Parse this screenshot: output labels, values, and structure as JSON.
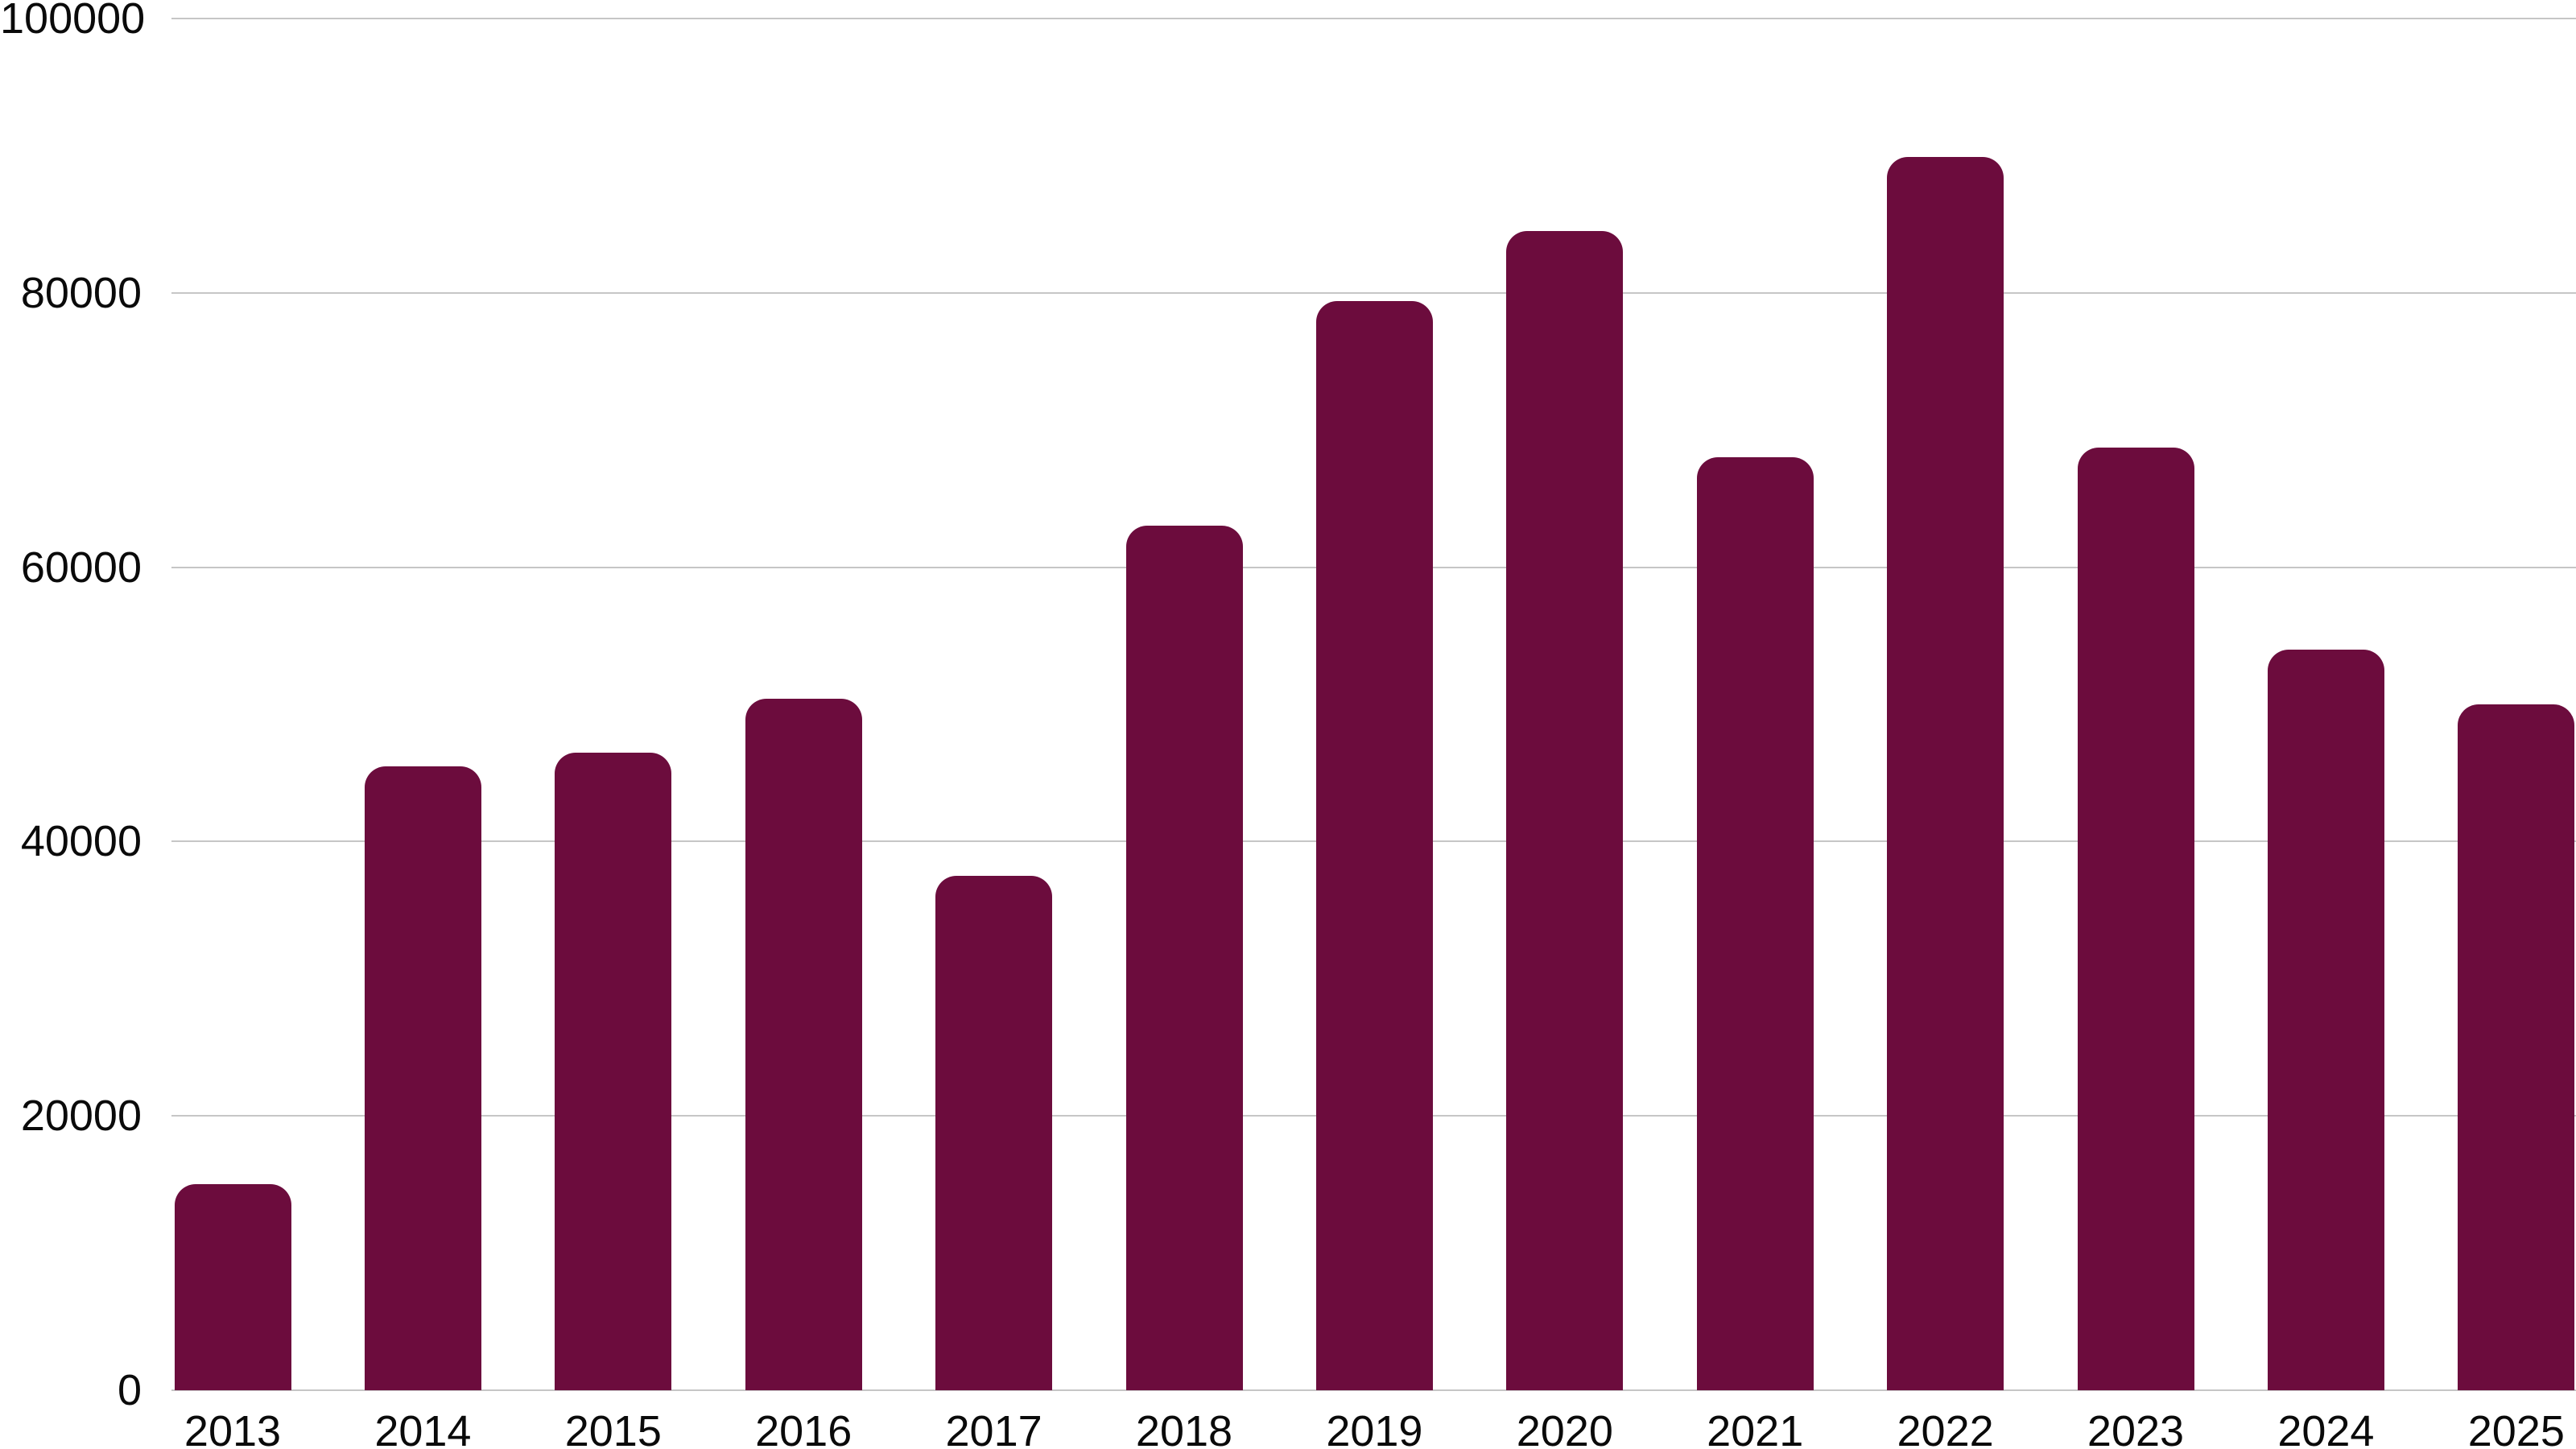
{
  "chart_data": {
    "type": "bar",
    "title": "",
    "xlabel": "",
    "ylabel": "",
    "categories": [
      "2013",
      "2014",
      "2015",
      "2016",
      "2017",
      "2018",
      "2019",
      "2020",
      "2021",
      "2022",
      "2023",
      "2024",
      "2025"
    ],
    "values": [
      15000,
      45500,
      46500,
      50400,
      37500,
      63000,
      79400,
      84500,
      68000,
      89900,
      68700,
      54000,
      50000
    ],
    "ylim": [
      0,
      100000
    ],
    "yticks": [
      0,
      20000,
      40000,
      60000,
      80000,
      100000
    ],
    "ytick_labels": [
      "0",
      "20000",
      "40000",
      "60000",
      "80000",
      "100000"
    ],
    "grid": "horizontal",
    "legend": "none",
    "bar_corner": "rounded-top",
    "colors": {
      "bar": "#6C0C3D",
      "gridline": "#C6C6C6",
      "label_text": "#0A0A0A",
      "background": "#FFFFFF"
    }
  }
}
